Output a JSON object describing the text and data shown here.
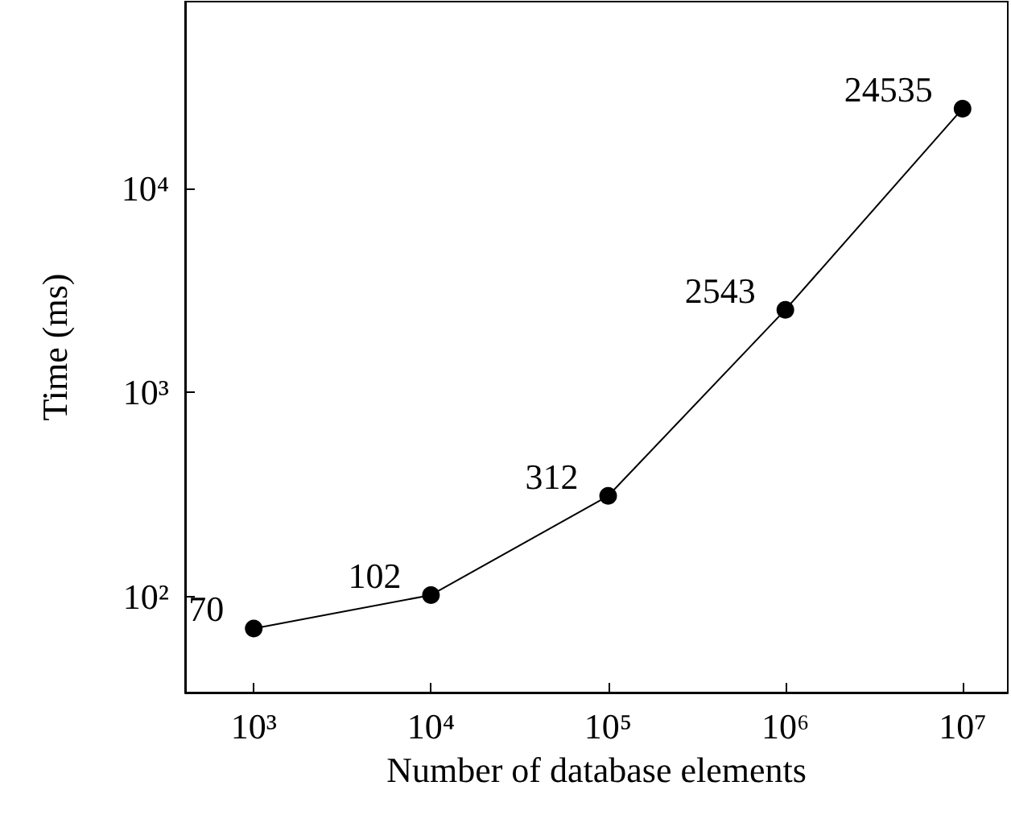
{
  "chart_data": {
    "type": "line",
    "xlabel": "Number of database elements",
    "ylabel": "Time (ms)",
    "x": [
      1000,
      10000,
      100000,
      1000000,
      10000000
    ],
    "series": [
      {
        "color": "#000000",
        "values": [
          70,
          102,
          312,
          2543,
          24535
        ]
      }
    ],
    "data_labels": true,
    "log": "xy",
    "marker": "circle",
    "line_style": "solid",
    "grid": false,
    "xlim": [
      410,
      18000000
    ],
    "ylim": [
      34,
      82000
    ],
    "xticks": [
      {
        "value": 1000,
        "label": "10³"
      },
      {
        "value": 10000,
        "label": "10⁴"
      },
      {
        "value": 100000,
        "label": "10⁵"
      },
      {
        "value": 1000000,
        "label": "10⁶"
      },
      {
        "value": 10000000,
        "label": "10⁷"
      }
    ],
    "yticks": [
      {
        "value": 100,
        "label": "10²"
      },
      {
        "value": 1000,
        "label": "10³"
      },
      {
        "value": 10000,
        "label": "10⁴"
      }
    ]
  }
}
